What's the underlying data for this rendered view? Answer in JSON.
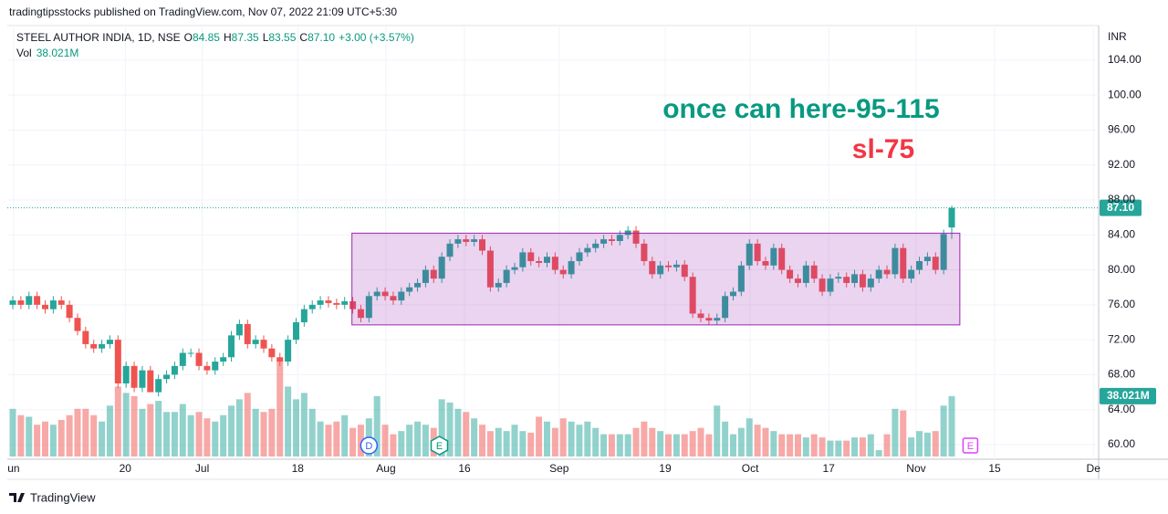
{
  "header": {
    "published": "tradingtipsstocks published on TradingView.com, Nov 07, 2022 21:09 UTC+5:30",
    "footer": "TradingView"
  },
  "legend": {
    "symbol": "STEEL AUTHOR INDIA, 1D, NSE",
    "o_label": "O",
    "o": "84.85",
    "h_label": "H",
    "h": "87.35",
    "l_label": "L",
    "l": "83.55",
    "c_label": "C",
    "c": "87.10",
    "change": "+3.00 (+3.57%)",
    "vol_label": "Vol",
    "vol": "38.021M"
  },
  "chart_data": {
    "type": "candlestick",
    "currency": "INR",
    "up_color": "#26a69a",
    "down_color": "#ef5350",
    "ylim": [
      58.64,
      107.96
    ],
    "yticks": [
      {
        "value": 60,
        "label": "60.00"
      },
      {
        "value": 64,
        "label": "64.00"
      },
      {
        "value": 68,
        "label": "68.00"
      },
      {
        "value": 72,
        "label": "72.00"
      },
      {
        "value": 76,
        "label": "76.00"
      },
      {
        "value": 80,
        "label": "80.00"
      },
      {
        "value": 84,
        "label": "84.00"
      },
      {
        "value": 88,
        "label": "88.00"
      },
      {
        "value": 92,
        "label": "92.00"
      },
      {
        "value": 96,
        "label": "96.00"
      },
      {
        "value": 100,
        "label": "100.00"
      },
      {
        "value": 104,
        "label": "104.00"
      }
    ],
    "xlim": [
      -1.58,
      134.15
    ],
    "xticks": [
      {
        "value": 0.1,
        "label": "un"
      },
      {
        "value": 13.9,
        "label": "20"
      },
      {
        "value": 23.4,
        "label": "Jul"
      },
      {
        "value": 35.2,
        "label": "18"
      },
      {
        "value": 46.1,
        "label": "Aug"
      },
      {
        "value": 55.8,
        "label": "16"
      },
      {
        "value": 67.5,
        "label": "Sep"
      },
      {
        "value": 80.6,
        "label": "19"
      },
      {
        "value": 91.1,
        "label": "Oct"
      },
      {
        "value": 100.8,
        "label": "17"
      },
      {
        "value": 111.6,
        "label": "Nov"
      },
      {
        "value": 121.3,
        "label": "15"
      },
      {
        "value": 133.5,
        "label": "De"
      }
    ],
    "grid": true,
    "open": [
      76,
      76.5,
      76,
      77,
      76,
      75.5,
      76.5,
      76,
      74.5,
      73,
      71.5,
      71,
      71.5,
      72,
      67,
      69,
      66.5,
      68.5,
      66,
      67.5,
      68,
      69,
      70.5,
      70.5,
      69,
      68.5,
      69.5,
      70,
      72.5,
      73.8,
      71.5,
      72,
      71,
      70,
      69.5,
      72,
      74,
      75.5,
      76,
      76.5,
      76.2,
      76,
      76.4,
      75.5,
      74.5,
      77,
      77.5,
      77,
      76.5,
      77.5,
      78,
      78.5,
      80,
      79,
      81.5,
      83,
      83.5,
      83.2,
      83.5,
      82.2,
      78,
      78.5,
      80,
      80.3,
      82,
      81,
      80.8,
      81.5,
      80,
      79.5,
      81,
      82,
      82.5,
      83,
      83.5,
      83.3,
      84,
      84.5,
      83,
      81,
      79.5,
      80.5,
      80.3,
      80.6,
      79.2,
      75,
      74.5,
      74.2,
      74.5,
      77,
      77.5,
      80.5,
      83,
      81,
      80.5,
      82.5,
      80,
      79,
      78.5,
      80.5,
      79,
      77.5,
      79,
      79.2,
      78.5,
      79.5,
      78,
      79,
      80,
      79.5,
      82.5,
      79,
      80,
      81,
      81.5,
      80,
      84.85
    ],
    "high": [
      77,
      77,
      77.5,
      77.5,
      76.5,
      77,
      77,
      76.5,
      75,
      73.5,
      72,
      72,
      72.5,
      72.5,
      69.5,
      69.5,
      69,
      69,
      68,
      68.5,
      69.5,
      71,
      71,
      71,
      69.5,
      70,
      70.5,
      73,
      74.3,
      74.3,
      72.5,
      72.5,
      71.5,
      70.5,
      72.5,
      74.5,
      76,
      76.5,
      77,
      77,
      76.7,
      76.9,
      76.9,
      76,
      77.5,
      78,
      78,
      77.5,
      78,
      78.5,
      79,
      80.5,
      80.5,
      82,
      83.5,
      84,
      84,
      84,
      84,
      82.7,
      79,
      80.5,
      80.8,
      82.5,
      82.5,
      81.5,
      82,
      82,
      80.5,
      81.5,
      82.5,
      83,
      83.5,
      84,
      84,
      84.5,
      85,
      85,
      83.5,
      81.5,
      81,
      81,
      81.1,
      81.1,
      79.7,
      75.5,
      75,
      75,
      77.5,
      78,
      81,
      83.5,
      83.5,
      81.5,
      83,
      83,
      80.5,
      79.5,
      81,
      81,
      79.5,
      79.5,
      79.7,
      79.7,
      80,
      80,
      79.5,
      80.5,
      80.5,
      83,
      83,
      80.5,
      81.5,
      82,
      82,
      84.6,
      87.35
    ],
    "low": [
      75.5,
      75.5,
      75.5,
      75.5,
      75,
      75,
      75.5,
      74,
      72.5,
      71,
      70.5,
      70.5,
      71,
      66.5,
      66.5,
      66,
      66,
      66,
      65.5,
      67,
      67.5,
      68.5,
      70,
      68.5,
      68,
      68,
      69,
      69.5,
      72,
      71,
      71,
      70.5,
      69.5,
      69,
      69,
      71.5,
      73.5,
      75,
      75.5,
      75.7,
      75.5,
      75.5,
      75,
      74,
      74,
      76.5,
      76.5,
      76,
      76,
      77,
      77.5,
      78,
      78.5,
      78.5,
      81,
      82.5,
      82.7,
      82.7,
      81.7,
      77.5,
      77.5,
      78,
      79.5,
      79.8,
      80.5,
      80.3,
      80.3,
      79.5,
      79,
      79,
      80.5,
      81.5,
      82,
      82.5,
      82.8,
      82.8,
      83.5,
      82.5,
      80.5,
      79,
      79,
      79.8,
      79.8,
      78.7,
      74.5,
      74,
      73.7,
      73.7,
      74,
      76.5,
      77,
      80,
      80.5,
      80,
      80,
      79.5,
      78.5,
      78,
      78,
      78.5,
      77,
      77,
      78.5,
      78,
      78,
      77.5,
      77.5,
      78.5,
      79,
      79,
      78.5,
      78.5,
      79.5,
      80.5,
      79.5,
      79.5,
      83.55
    ],
    "close": [
      76.5,
      76,
      77,
      76,
      75.5,
      76.5,
      76,
      74.5,
      73,
      71.5,
      71,
      71.5,
      72,
      67,
      69,
      66.5,
      68.5,
      66,
      67.5,
      68,
      69,
      70.5,
      70.5,
      69,
      68.5,
      69.5,
      70,
      72.5,
      73.8,
      71.5,
      72,
      71,
      70,
      69.5,
      72,
      74,
      75.5,
      76,
      76.5,
      76.2,
      76,
      76.4,
      75.5,
      74.5,
      77,
      77.5,
      77,
      76.5,
      77.5,
      78,
      78.5,
      80,
      79,
      81.5,
      83,
      83.5,
      83.2,
      83.5,
      82.2,
      78,
      78.5,
      80,
      80.3,
      82,
      81,
      80.8,
      81.5,
      80,
      79.5,
      81,
      82,
      82.5,
      83,
      83.5,
      83.3,
      84,
      84.5,
      83,
      81,
      79.5,
      80.5,
      80.3,
      80.6,
      79.2,
      75,
      74.5,
      74.2,
      74.5,
      77,
      77.5,
      80.5,
      83,
      81,
      80.5,
      82.5,
      80,
      79,
      78.5,
      80.5,
      79,
      77.5,
      79,
      79.2,
      78.5,
      79.5,
      78,
      79,
      80,
      79.5,
      82.5,
      79,
      80,
      81,
      81.5,
      80,
      84.1,
      87.1
    ],
    "volume": [
      30,
      26,
      25,
      20,
      22,
      20,
      23,
      26,
      30,
      30,
      26,
      22,
      32,
      44,
      40,
      38,
      30,
      33,
      35,
      28,
      28,
      33,
      26,
      28,
      24,
      22,
      26,
      32,
      36,
      40,
      30,
      28,
      30,
      60,
      44,
      36,
      40,
      30,
      22,
      20,
      22,
      26,
      18,
      20,
      24,
      38,
      20,
      14,
      16,
      20,
      22,
      20,
      18,
      36,
      34,
      30,
      28,
      24,
      20,
      16,
      18,
      16,
      20,
      16,
      15,
      25,
      22,
      18,
      24,
      22,
      20,
      22,
      18,
      14,
      14,
      14,
      14,
      18,
      22,
      18,
      16,
      14,
      14,
      14,
      16,
      18,
      14,
      32,
      22,
      14,
      18,
      24,
      20,
      18,
      16,
      14,
      14,
      14,
      12,
      14,
      12,
      10,
      10,
      10,
      12,
      12,
      14,
      4,
      14,
      30,
      29,
      12,
      16,
      15,
      16,
      32,
      38.021
    ],
    "last_price": {
      "value": 87.1,
      "label": "87.10"
    },
    "last_volume": "38.021M",
    "box": {
      "start": 41.9,
      "end": 117,
      "top": 84.2,
      "bottom": 73.7,
      "color": "#9c27b0"
    },
    "annotations": [
      {
        "text": "once can here-95-115",
        "color": "#089981"
      },
      {
        "text": "sl-75",
        "color": "#f23645"
      }
    ],
    "events": [
      {
        "label": "D",
        "x": 44,
        "color": "#2962ff"
      },
      {
        "label": "E",
        "x": 52.7,
        "color": "#089981"
      },
      {
        "label": "E",
        "x": 118.3,
        "color": "#e040fb"
      }
    ]
  }
}
